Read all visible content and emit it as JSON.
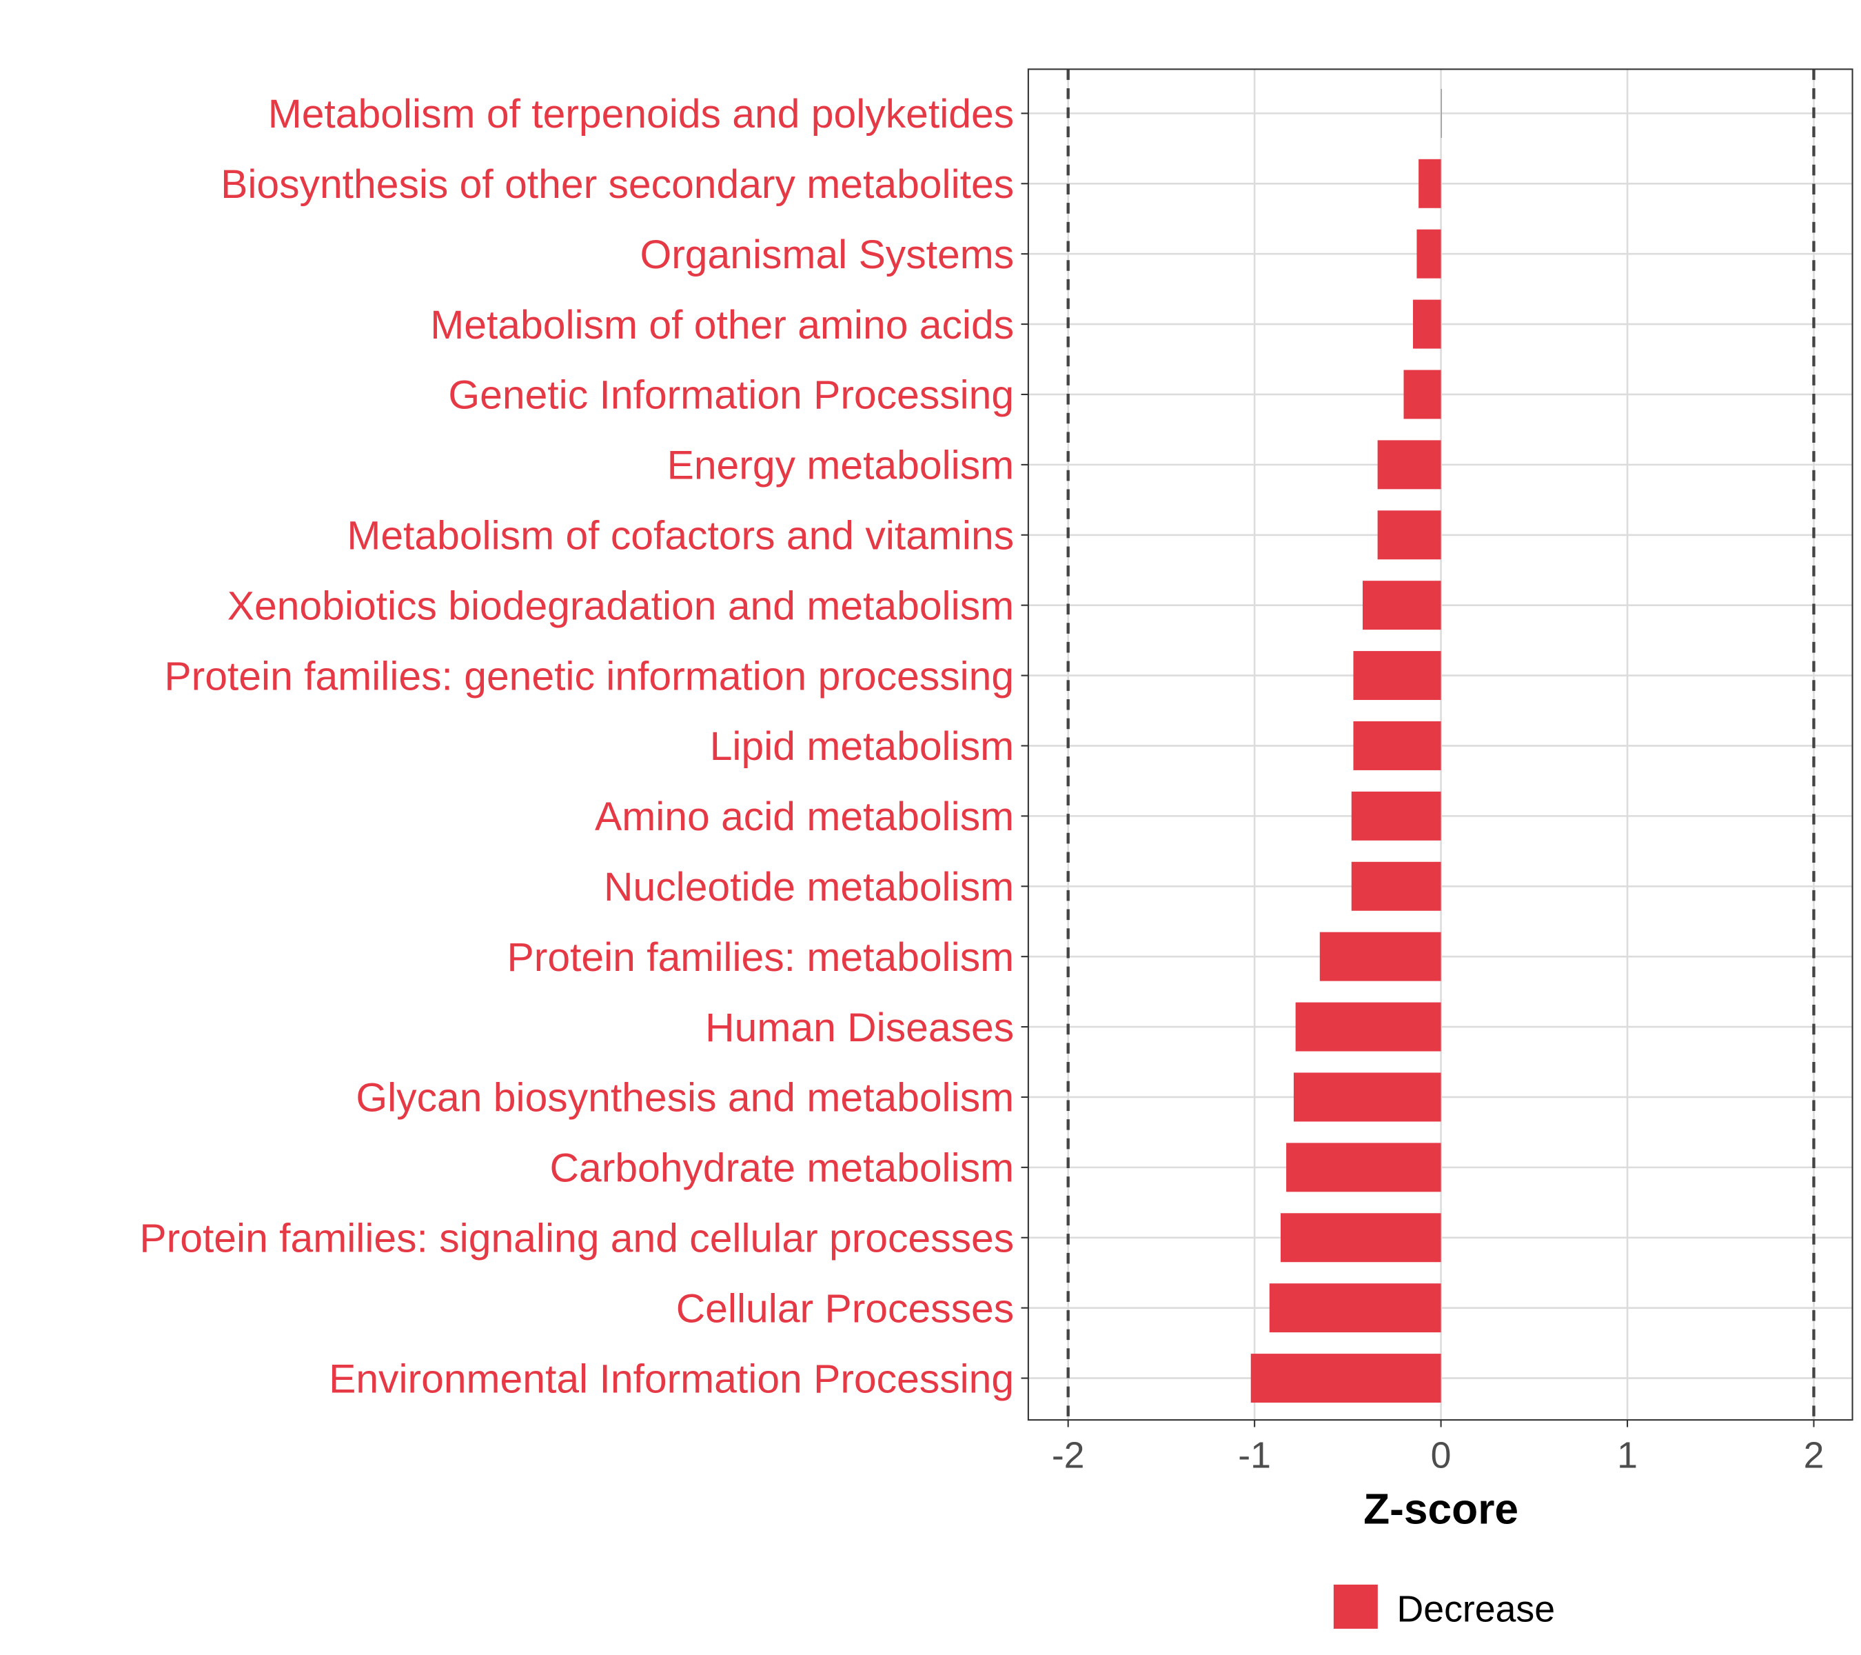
{
  "chart_data": {
    "type": "bar",
    "orientation": "horizontal",
    "title": "",
    "xlabel": "Z-score",
    "ylabel": "",
    "xlim": [
      -2.1,
      2.2
    ],
    "xticks": [
      -2,
      -1,
      0,
      1,
      2
    ],
    "xtick_labels": [
      "-2",
      "-1",
      "0",
      "1",
      "2"
    ],
    "reference_lines": [
      -2,
      2
    ],
    "grid": true,
    "categories": [
      "Metabolism of terpenoids and polyketides",
      "Biosynthesis of other secondary metabolites",
      "Organismal Systems",
      "Metabolism of other amino acids",
      "Genetic Information Processing",
      "Energy metabolism",
      "Metabolism of cofactors and vitamins",
      "Xenobiotics biodegradation and metabolism",
      "Protein families: genetic information processing",
      "Lipid metabolism",
      "Amino acid metabolism",
      "Nucleotide metabolism",
      "Protein families: metabolism",
      "Human Diseases",
      "Glycan biosynthesis and metabolism",
      "Carbohydrate metabolism",
      "Protein families: signaling and cellular processes",
      "Cellular Processes",
      "Environmental Information Processing"
    ],
    "values": [
      0.0,
      -0.12,
      -0.13,
      -0.15,
      -0.2,
      -0.34,
      -0.34,
      -0.42,
      -0.47,
      -0.47,
      -0.48,
      -0.48,
      -0.65,
      -0.78,
      -0.79,
      -0.83,
      -0.86,
      -0.92,
      -1.02
    ],
    "legend": {
      "position": "bottom",
      "entries": [
        {
          "label": "Decrease",
          "color": "#E63946"
        }
      ]
    },
    "colors": {
      "bar": "#E63946",
      "label": "#E63946"
    }
  }
}
